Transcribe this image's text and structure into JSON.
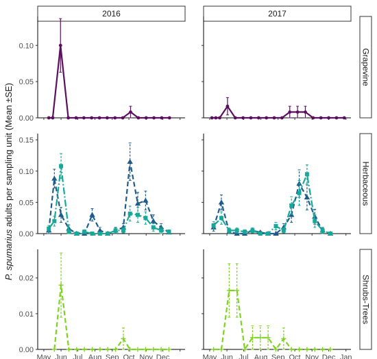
{
  "chart_data": {
    "type": "line",
    "ylabel_italic": "P. spumarius",
    "ylabel_rest": " adults per sampling unit (Mean ±SE)",
    "xlabel": "",
    "columns": [
      "2016",
      "2017"
    ],
    "rows": [
      {
        "name": "Grapevine",
        "ylim": [
          0,
          0.14
        ],
        "yticks": [
          0,
          0.05,
          0.1
        ],
        "ytick_labels": [
          "0.00",
          "0.05",
          "0.10"
        ]
      },
      {
        "name": "Herbaceous",
        "ylim": [
          0,
          0.16
        ],
        "yticks": [
          0,
          0.05,
          0.1,
          0.15
        ],
        "ytick_labels": [
          "0.00",
          "0.05",
          "0.10",
          "0.15"
        ]
      },
      {
        "name": "Shrubs-Trees",
        "ylim": [
          0,
          0.028
        ],
        "yticks": [
          0,
          0.01,
          0.02
        ],
        "ytick_labels": [
          "0.00",
          "0.01",
          "0.02"
        ]
      }
    ],
    "xaxis": {
      "xlim": [
        "2000-04-20",
        "2001-01-10"
      ],
      "ticks": [
        "2000-05-01",
        "2000-06-01",
        "2000-07-01",
        "2000-08-01",
        "2000-09-01",
        "2000-10-01",
        "2000-11-01",
        "2000-12-01",
        "2001-01-01"
      ],
      "labels_2016": [
        "May",
        "Jun",
        "Jul",
        "Aug",
        "Sep",
        "Oct",
        "Nov",
        "Dec",
        ""
      ],
      "labels_2017": [
        "May",
        "Jun",
        "Jul",
        "Aug",
        "Sep",
        "Oct",
        "Nov",
        "Dec",
        "Jan"
      ]
    },
    "colors": {
      "grapevine": "#5b0f5f",
      "herb_a": "#1f5c8b",
      "herb_b": "#18a898",
      "shrub": "#7ed321"
    },
    "panels": [
      {
        "col": 0,
        "row": 0,
        "series": [
          {
            "color": "grapevine",
            "dash": "",
            "marker": "circle",
            "points": [
              [
                "2000-05-10",
                0,
                0
              ],
              [
                "2000-05-17",
                0,
                0
              ],
              [
                "2000-05-31",
                0.1,
                0.037
              ],
              [
                "2000-06-14",
                0,
                0
              ],
              [
                "2000-06-28",
                0,
                0
              ],
              [
                "2000-07-12",
                0,
                0
              ],
              [
                "2000-07-26",
                0,
                0
              ],
              [
                "2000-08-09",
                0,
                0
              ],
              [
                "2000-08-23",
                0,
                0
              ],
              [
                "2000-09-06",
                0,
                0
              ],
              [
                "2000-09-20",
                0,
                0
              ],
              [
                "2000-10-04",
                0.008,
                0.008
              ],
              [
                "2000-10-18",
                0,
                0
              ],
              [
                "2000-11-01",
                0,
                0
              ],
              [
                "2000-11-15",
                0,
                0
              ],
              [
                "2000-11-29",
                0,
                0
              ],
              [
                "2000-12-13",
                0,
                0
              ]
            ]
          }
        ]
      },
      {
        "col": 1,
        "row": 0,
        "series": [
          {
            "color": "grapevine",
            "dash": "",
            "marker": "circle",
            "points": [
              [
                "2000-05-05",
                0,
                0
              ],
              [
                "2000-05-12",
                0,
                0
              ],
              [
                "2000-05-19",
                0,
                0
              ],
              [
                "2000-06-02",
                0.016,
                0.012
              ],
              [
                "2000-06-16",
                0,
                0
              ],
              [
                "2000-06-30",
                0,
                0
              ],
              [
                "2000-07-14",
                0,
                0
              ],
              [
                "2000-07-28",
                0,
                0
              ],
              [
                "2000-08-11",
                0,
                0
              ],
              [
                "2000-08-25",
                0,
                0
              ],
              [
                "2000-09-08",
                0,
                0
              ],
              [
                "2000-09-22",
                0.008,
                0.008
              ],
              [
                "2000-10-06",
                0.008,
                0.008
              ],
              [
                "2000-10-20",
                0.008,
                0.008
              ],
              [
                "2000-11-03",
                0,
                0
              ],
              [
                "2000-11-17",
                0,
                0
              ],
              [
                "2000-12-01",
                0,
                0
              ],
              [
                "2000-12-15",
                0,
                0
              ],
              [
                "2000-12-29",
                0,
                0
              ]
            ]
          }
        ]
      },
      {
        "col": 0,
        "row": 1,
        "series": [
          {
            "color": "herb_a",
            "dash": "7,4",
            "marker": "triangle",
            "points": [
              [
                "2000-05-10",
                0.005,
                0.005
              ],
              [
                "2000-05-20",
                0.088,
                0.015
              ],
              [
                "2000-06-01",
                0.03,
                0.012
              ],
              [
                "2000-06-15",
                0.008,
                0.006
              ],
              [
                "2000-06-29",
                0,
                0
              ],
              [
                "2000-07-13",
                0,
                0
              ],
              [
                "2000-07-27",
                0.03,
                0.01
              ],
              [
                "2000-08-10",
                0.005,
                0.005
              ],
              [
                "2000-08-24",
                0,
                0
              ],
              [
                "2000-09-07",
                0.005,
                0.005
              ],
              [
                "2000-09-21",
                0.01,
                0.006
              ],
              [
                "2000-10-03",
                0.115,
                0.03
              ],
              [
                "2000-10-17",
                0.048,
                0.018
              ],
              [
                "2000-10-31",
                0.053,
                0.015
              ],
              [
                "2000-11-14",
                0.02,
                0.01
              ],
              [
                "2000-11-28",
                0.01,
                0.006
              ],
              [
                "2000-12-12",
                0.002,
                0.002
              ]
            ]
          },
          {
            "color": "herb_b",
            "dash": "10,3,2,3",
            "marker": "square",
            "points": [
              [
                "2000-05-10",
                0.008,
                0.005
              ],
              [
                "2000-05-20",
                0.02,
                0.008
              ],
              [
                "2000-06-01",
                0.108,
                0.02
              ],
              [
                "2000-06-15",
                0.003,
                0.003
              ],
              [
                "2000-06-29",
                0,
                0
              ],
              [
                "2000-07-13",
                0.003,
                0.003
              ],
              [
                "2000-07-27",
                0,
                0
              ],
              [
                "2000-08-10",
                0,
                0
              ],
              [
                "2000-08-24",
                0,
                0
              ],
              [
                "2000-09-07",
                0.005,
                0.004
              ],
              [
                "2000-09-21",
                0.005,
                0.004
              ],
              [
                "2000-10-03",
                0.032,
                0.012
              ],
              [
                "2000-10-17",
                0.03,
                0.012
              ],
              [
                "2000-10-31",
                0.025,
                0.01
              ],
              [
                "2000-11-14",
                0.01,
                0.006
              ],
              [
                "2000-11-28",
                0.005,
                0.005
              ],
              [
                "2000-12-12",
                0.003,
                0.003
              ]
            ]
          }
        ]
      },
      {
        "col": 1,
        "row": 1,
        "series": [
          {
            "color": "herb_a",
            "dash": "7,4",
            "marker": "triangle",
            "points": [
              [
                "2000-05-08",
                0.01,
                0.006
              ],
              [
                "2000-05-22",
                0.05,
                0.012
              ],
              [
                "2000-06-05",
                0.003,
                0.003
              ],
              [
                "2000-06-19",
                0,
                0
              ],
              [
                "2000-07-03",
                0,
                0
              ],
              [
                "2000-07-17",
                0.005,
                0.004
              ],
              [
                "2000-07-31",
                0.002,
                0.002
              ],
              [
                "2000-08-14",
                0,
                0
              ],
              [
                "2000-08-28",
                0,
                0
              ],
              [
                "2000-09-11",
                0.01,
                0.006
              ],
              [
                "2000-09-25",
                0.03,
                0.012
              ],
              [
                "2000-10-09",
                0.08,
                0.022
              ],
              [
                "2000-10-23",
                0.058,
                0.02
              ],
              [
                "2000-11-06",
                0.027,
                0.012
              ],
              [
                "2000-11-20",
                0.005,
                0.004
              ],
              [
                "2000-12-04",
                0,
                0
              ]
            ]
          },
          {
            "color": "herb_b",
            "dash": "10,3,2,3",
            "marker": "square",
            "points": [
              [
                "2000-05-08",
                0.013,
                0.006
              ],
              [
                "2000-05-22",
                0.025,
                0.01
              ],
              [
                "2000-06-05",
                0.005,
                0.004
              ],
              [
                "2000-06-19",
                0.005,
                0.004
              ],
              [
                "2000-07-03",
                0.003,
                0.003
              ],
              [
                "2000-07-17",
                0.005,
                0.004
              ],
              [
                "2000-07-31",
                0,
                0
              ],
              [
                "2000-08-14",
                0,
                0
              ],
              [
                "2000-08-28",
                0.012,
                0.006
              ],
              [
                "2000-09-11",
                0.005,
                0.004
              ],
              [
                "2000-09-25",
                0.045,
                0.014
              ],
              [
                "2000-10-09",
                0.065,
                0.02
              ],
              [
                "2000-10-23",
                0.095,
                0.015
              ],
              [
                "2000-11-06",
                0.02,
                0.01
              ],
              [
                "2000-11-20",
                0.005,
                0.005
              ],
              [
                "2000-12-04",
                0,
                0
              ]
            ]
          }
        ]
      },
      {
        "col": 0,
        "row": 2,
        "series": [
          {
            "color": "shrub",
            "dash": "7,4",
            "marker": "plus",
            "points": [
              [
                "2000-05-20",
                0,
                0
              ],
              [
                "2000-06-01",
                0.018,
                0.009
              ],
              [
                "2000-06-15",
                0,
                0
              ],
              [
                "2000-06-29",
                0,
                0
              ],
              [
                "2000-07-13",
                0,
                0
              ],
              [
                "2000-07-27",
                0,
                0
              ],
              [
                "2000-08-10",
                0,
                0
              ],
              [
                "2000-08-24",
                0,
                0
              ],
              [
                "2000-09-07",
                0,
                0
              ],
              [
                "2000-09-21",
                0.003,
                0.003
              ],
              [
                "2000-10-03",
                0,
                0
              ],
              [
                "2000-10-17",
                0,
                0
              ],
              [
                "2000-10-31",
                0,
                0
              ],
              [
                "2000-11-14",
                0,
                0
              ],
              [
                "2000-11-28",
                0,
                0
              ],
              [
                "2000-12-12",
                0,
                0
              ]
            ]
          }
        ]
      },
      {
        "col": 1,
        "row": 2,
        "series": [
          {
            "color": "shrub",
            "dash": "7,4",
            "marker": "plus",
            "points": [
              [
                "2000-05-08",
                0,
                0
              ],
              [
                "2000-05-22",
                0,
                0
              ],
              [
                "2000-06-05",
                0.0165,
                0.0075
              ],
              [
                "2000-06-19",
                0.0165,
                0.0075
              ],
              [
                "2000-07-03",
                0,
                0
              ],
              [
                "2000-07-17",
                0.0033,
                0.0033
              ],
              [
                "2000-07-31",
                0.0033,
                0.0033
              ],
              [
                "2000-08-14",
                0.0033,
                0.0033
              ],
              [
                "2000-08-28",
                0,
                0
              ],
              [
                "2000-09-11",
                0.003,
                0.003
              ],
              [
                "2000-09-25",
                0,
                0
              ],
              [
                "2000-10-09",
                0,
                0
              ],
              [
                "2000-10-23",
                0,
                0
              ],
              [
                "2000-11-06",
                0,
                0
              ],
              [
                "2000-11-20",
                0,
                0
              ],
              [
                "2000-12-04",
                0,
                0
              ]
            ]
          }
        ]
      }
    ]
  }
}
